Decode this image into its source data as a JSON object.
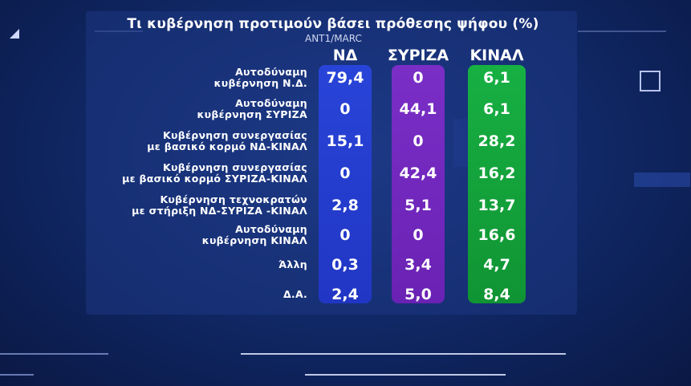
{
  "title": "Τι κυβέρνηση προτιμούν βάσει πρόθεσης ψήφου (%)",
  "source": "ΑΝΤ1/MARC",
  "chart_data": {
    "type": "table",
    "title": "Τι κυβέρνηση προτιμούν βάσει πρόθεσης ψήφου (%)",
    "columns": [
      "ΝΔ",
      "ΣΥΡΙΖΑ",
      "ΚΙΝΑΛ"
    ],
    "column_colors": [
      "#2136c4",
      "#6a22b4",
      "#109433"
    ],
    "rows": [
      {
        "label_lines": [
          "Αυτοδύναμη",
          "κυβέρνηση Ν.Δ."
        ],
        "values": [
          "79,4",
          "0",
          "6,1"
        ]
      },
      {
        "label_lines": [
          "Αυτοδύναμη",
          "κυβέρνηση ΣΥΡΙΖΑ"
        ],
        "values": [
          "0",
          "44,1",
          "6,1"
        ]
      },
      {
        "label_lines": [
          "Κυβέρνηση συνεργασίας",
          "με βασικό κορμό ΝΔ-ΚΙΝΑΛ"
        ],
        "values": [
          "15,1",
          "0",
          "28,2"
        ]
      },
      {
        "label_lines": [
          "Κυβέρνηση συνεργασίας",
          "με βασικό κορμό ΣΥΡΙΖΑ-ΚΙΝΑΛ"
        ],
        "values": [
          "0",
          "42,4",
          "16,2"
        ]
      },
      {
        "label_lines": [
          "Κυβέρνηση τεχνοκρατών",
          "με στήριξη ΝΔ-ΣΥΡΙΖΑ -ΚΙΝΑΛ"
        ],
        "values": [
          "2,8",
          "5,1",
          "13,7"
        ]
      },
      {
        "label_lines": [
          "Αυτοδύναμη",
          "κυβέρνηση ΚΙΝΑΛ"
        ],
        "values": [
          "0",
          "0",
          "16,6"
        ]
      },
      {
        "label_lines": [
          "Άλλη"
        ],
        "values": [
          "0,3",
          "3,4",
          "4,7"
        ]
      },
      {
        "label_lines": [
          "Δ.Α."
        ],
        "values": [
          "2,4",
          "5,0",
          "8,4"
        ]
      }
    ]
  }
}
